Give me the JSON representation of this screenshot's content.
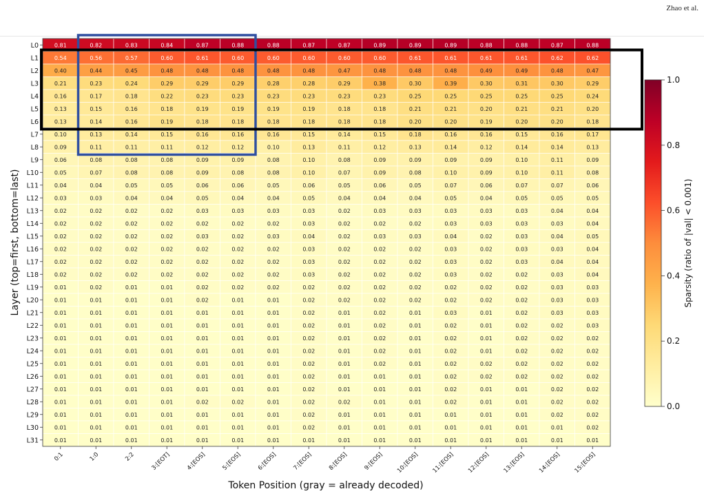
{
  "header": {
    "author": "Zhao et al."
  },
  "chart_data": {
    "type": "heatmap",
    "xlabel": "Token Position (gray = already decoded)",
    "ylabel": "Layer (top=first, bottom=last)",
    "colorbar_label": "Sparsity (ratio of |val| < 0.001)",
    "colorbar_ticks": [
      "0.0",
      "0.2",
      "0.4",
      "0.6",
      "0.8",
      "1.0"
    ],
    "vmin": 0,
    "vmax": 1,
    "colormap": "YlOrRd",
    "x_categories": [
      "0:1",
      "1:0",
      "2:2",
      "3:[EOT]",
      "4:[EOS]",
      "5:[EOS]",
      "6:[EOS]",
      "7:[EOS]",
      "8:[EOS]",
      "9:[EOS]",
      "10:[EOS]",
      "11:[EOS]",
      "12:[EOS]",
      "13:[EOS]",
      "14:[EOS]",
      "15:[EOS]"
    ],
    "y_categories": [
      "L0",
      "L1",
      "L2",
      "L3",
      "L4",
      "L5",
      "L6",
      "L7",
      "L8",
      "L9",
      "L10",
      "L11",
      "L12",
      "L13",
      "L14",
      "L15",
      "L16",
      "L17",
      "L18",
      "L19",
      "L20",
      "L21",
      "L22",
      "L23",
      "L24",
      "L25",
      "L26",
      "L27",
      "L28",
      "L29",
      "L30",
      "L31"
    ],
    "values": [
      [
        "0.81",
        "0.82",
        "0.83",
        "0.84",
        "0.87",
        "0.88",
        "0.88",
        "0.87",
        "0.87",
        "0.89",
        "0.89",
        "0.89",
        "0.88",
        "0.88",
        "0.87",
        "0.88"
      ],
      [
        "0.54",
        "0.56",
        "0.57",
        "0.60",
        "0.61",
        "0.60",
        "0.60",
        "0.60",
        "0.60",
        "0.60",
        "0.61",
        "0.61",
        "0.61",
        "0.61",
        "0.62",
        "0.62"
      ],
      [
        "0.40",
        "0.44",
        "0.45",
        "0.48",
        "0.48",
        "0.48",
        "0.48",
        "0.48",
        "0.47",
        "0.48",
        "0.48",
        "0.48",
        "0.49",
        "0.49",
        "0.48",
        "0.47"
      ],
      [
        "0.21",
        "0.23",
        "0.24",
        "0.29",
        "0.29",
        "0.29",
        "0.28",
        "0.28",
        "0.29",
        "0.38",
        "0.30",
        "0.39",
        "0.30",
        "0.31",
        "0.30",
        "0.29"
      ],
      [
        "0.16",
        "0.17",
        "0.18",
        "0.22",
        "0.23",
        "0.23",
        "0.23",
        "0.23",
        "0.23",
        "0.23",
        "0.25",
        "0.25",
        "0.25",
        "0.25",
        "0.25",
        "0.24"
      ],
      [
        "0.13",
        "0.15",
        "0.16",
        "0.18",
        "0.19",
        "0.19",
        "0.19",
        "0.19",
        "0.18",
        "0.18",
        "0.21",
        "0.21",
        "0.20",
        "0.21",
        "0.21",
        "0.20"
      ],
      [
        "0.13",
        "0.14",
        "0.16",
        "0.19",
        "0.18",
        "0.18",
        "0.18",
        "0.18",
        "0.18",
        "0.18",
        "0.20",
        "0.20",
        "0.19",
        "0.20",
        "0.20",
        "0.18"
      ],
      [
        "0.10",
        "0.13",
        "0.14",
        "0.15",
        "0.16",
        "0.16",
        "0.16",
        "0.15",
        "0.14",
        "0.15",
        "0.18",
        "0.16",
        "0.16",
        "0.15",
        "0.16",
        "0.17"
      ],
      [
        "0.09",
        "0.11",
        "0.11",
        "0.11",
        "0.12",
        "0.12",
        "0.10",
        "0.13",
        "0.11",
        "0.12",
        "0.13",
        "0.14",
        "0.12",
        "0.14",
        "0.14",
        "0.13"
      ],
      [
        "0.06",
        "0.08",
        "0.08",
        "0.08",
        "0.09",
        "0.09",
        "0.08",
        "0.10",
        "0.08",
        "0.09",
        "0.09",
        "0.09",
        "0.09",
        "0.10",
        "0.11",
        "0.09"
      ],
      [
        "0.05",
        "0.07",
        "0.08",
        "0.08",
        "0.09",
        "0.08",
        "0.08",
        "0.10",
        "0.07",
        "0.09",
        "0.08",
        "0.10",
        "0.09",
        "0.10",
        "0.11",
        "0.08"
      ],
      [
        "0.04",
        "0.04",
        "0.05",
        "0.05",
        "0.06",
        "0.06",
        "0.05",
        "0.06",
        "0.05",
        "0.06",
        "0.05",
        "0.07",
        "0.06",
        "0.07",
        "0.07",
        "0.06"
      ],
      [
        "0.03",
        "0.03",
        "0.04",
        "0.04",
        "0.05",
        "0.04",
        "0.04",
        "0.05",
        "0.04",
        "0.04",
        "0.04",
        "0.05",
        "0.04",
        "0.05",
        "0.05",
        "0.05"
      ],
      [
        "0.02",
        "0.02",
        "0.02",
        "0.02",
        "0.03",
        "0.03",
        "0.03",
        "0.03",
        "0.02",
        "0.03",
        "0.03",
        "0.03",
        "0.03",
        "0.03",
        "0.04",
        "0.04"
      ],
      [
        "0.02",
        "0.02",
        "0.02",
        "0.02",
        "0.02",
        "0.02",
        "0.02",
        "0.03",
        "0.02",
        "0.02",
        "0.02",
        "0.03",
        "0.03",
        "0.03",
        "0.03",
        "0.04"
      ],
      [
        "0.02",
        "0.02",
        "0.02",
        "0.02",
        "0.03",
        "0.02",
        "0.03",
        "0.04",
        "0.02",
        "0.03",
        "0.03",
        "0.04",
        "0.02",
        "0.03",
        "0.04",
        "0.05"
      ],
      [
        "0.02",
        "0.02",
        "0.02",
        "0.02",
        "0.02",
        "0.02",
        "0.02",
        "0.03",
        "0.02",
        "0.02",
        "0.02",
        "0.03",
        "0.02",
        "0.03",
        "0.03",
        "0.04"
      ],
      [
        "0.02",
        "0.02",
        "0.02",
        "0.02",
        "0.02",
        "0.02",
        "0.02",
        "0.03",
        "0.02",
        "0.02",
        "0.02",
        "0.03",
        "0.02",
        "0.03",
        "0.04",
        "0.04"
      ],
      [
        "0.02",
        "0.02",
        "0.02",
        "0.02",
        "0.02",
        "0.02",
        "0.02",
        "0.03",
        "0.02",
        "0.02",
        "0.02",
        "0.03",
        "0.02",
        "0.02",
        "0.03",
        "0.04"
      ],
      [
        "0.01",
        "0.02",
        "0.01",
        "0.01",
        "0.02",
        "0.02",
        "0.02",
        "0.02",
        "0.02",
        "0.02",
        "0.02",
        "0.02",
        "0.02",
        "0.02",
        "0.03",
        "0.03"
      ],
      [
        "0.01",
        "0.01",
        "0.01",
        "0.01",
        "0.02",
        "0.01",
        "0.01",
        "0.02",
        "0.02",
        "0.02",
        "0.02",
        "0.02",
        "0.02",
        "0.02",
        "0.03",
        "0.03"
      ],
      [
        "0.01",
        "0.01",
        "0.01",
        "0.01",
        "0.01",
        "0.01",
        "0.01",
        "0.02",
        "0.01",
        "0.02",
        "0.01",
        "0.03",
        "0.01",
        "0.02",
        "0.03",
        "0.03"
      ],
      [
        "0.01",
        "0.01",
        "0.01",
        "0.01",
        "0.01",
        "0.01",
        "0.01",
        "0.02",
        "0.01",
        "0.02",
        "0.01",
        "0.02",
        "0.01",
        "0.02",
        "0.02",
        "0.03"
      ],
      [
        "0.01",
        "0.01",
        "0.01",
        "0.01",
        "0.01",
        "0.01",
        "0.01",
        "0.02",
        "0.01",
        "0.02",
        "0.01",
        "0.02",
        "0.01",
        "0.02",
        "0.02",
        "0.02"
      ],
      [
        "0.01",
        "0.01",
        "0.01",
        "0.01",
        "0.01",
        "0.01",
        "0.01",
        "0.02",
        "0.01",
        "0.02",
        "0.01",
        "0.02",
        "0.01",
        "0.02",
        "0.02",
        "0.02"
      ],
      [
        "0.01",
        "0.01",
        "0.01",
        "0.01",
        "0.01",
        "0.01",
        "0.01",
        "0.02",
        "0.01",
        "0.02",
        "0.01",
        "0.02",
        "0.02",
        "0.02",
        "0.02",
        "0.02"
      ],
      [
        "0.01",
        "0.01",
        "0.01",
        "0.01",
        "0.01",
        "0.01",
        "0.01",
        "0.02",
        "0.01",
        "0.01",
        "0.01",
        "0.02",
        "0.02",
        "0.02",
        "0.02",
        "0.02"
      ],
      [
        "0.01",
        "0.01",
        "0.01",
        "0.01",
        "0.01",
        "0.01",
        "0.01",
        "0.02",
        "0.01",
        "0.01",
        "0.01",
        "0.02",
        "0.01",
        "0.01",
        "0.02",
        "0.02"
      ],
      [
        "0.01",
        "0.01",
        "0.01",
        "0.01",
        "0.02",
        "0.02",
        "0.01",
        "0.02",
        "0.02",
        "0.01",
        "0.01",
        "0.02",
        "0.01",
        "0.01",
        "0.02",
        "0.02"
      ],
      [
        "0.01",
        "0.01",
        "0.01",
        "0.01",
        "0.01",
        "0.01",
        "0.01",
        "0.02",
        "0.01",
        "0.01",
        "0.01",
        "0.01",
        "0.01",
        "0.01",
        "0.02",
        "0.02"
      ],
      [
        "0.01",
        "0.01",
        "0.01",
        "0.01",
        "0.01",
        "0.01",
        "0.01",
        "0.02",
        "0.01",
        "0.01",
        "0.01",
        "0.01",
        "0.01",
        "0.01",
        "0.01",
        "0.02"
      ],
      [
        "0.01",
        "0.01",
        "0.01",
        "0.01",
        "0.01",
        "0.01",
        "0.01",
        "0.01",
        "0.01",
        "0.01",
        "0.01",
        "0.01",
        "0.01",
        "0.01",
        "0.01",
        "0.01"
      ]
    ],
    "highlights": [
      {
        "color": "#2f4fa0",
        "rows": [
          0,
          8
        ],
        "cols": [
          1,
          5
        ]
      },
      {
        "color": "#000000",
        "rows": [
          1,
          6
        ],
        "cols": [
          0,
          15
        ]
      }
    ]
  }
}
